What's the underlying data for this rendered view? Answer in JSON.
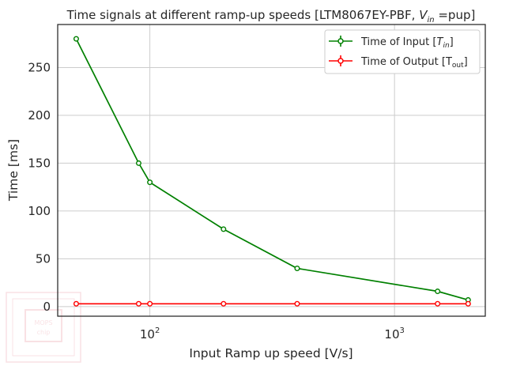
{
  "chart_data": {
    "type": "line",
    "title": "Time signals at different ramp-up speeds [LTM8067EY-PBF, V_in =pup]",
    "title_parts": {
      "prefix": "Time signals at different ramp-up speeds [LTM8067EY-PBF, ",
      "var": "V",
      "sub": "in",
      "suffix": " =pup]"
    },
    "xlabel": "Input Ramp up speed [V/s]",
    "ylabel": "Time [ms]",
    "xscale": "log",
    "xlim": [
      42,
      2350
    ],
    "ylim": [
      -10,
      295
    ],
    "xticks": [
      {
        "value": 100,
        "base": "10",
        "exp": "2"
      },
      {
        "value": 1000,
        "base": "10",
        "exp": "3"
      }
    ],
    "yticks": [
      0,
      50,
      100,
      150,
      200,
      250
    ],
    "grid": true,
    "legend_position": "top-right",
    "series": [
      {
        "name": "Time of Input [T_in]",
        "label_parts": {
          "prefix": "Time of Input [",
          "var": "T",
          "sub": "in",
          "suffix": "]"
        },
        "color": "#008000",
        "x": [
          50,
          90,
          100,
          200,
          400,
          1500,
          2000
        ],
        "y": [
          280,
          150,
          130,
          81,
          40,
          16,
          7
        ]
      },
      {
        "name": "Time of Output [T_out]",
        "label_parts": {
          "prefix": "Time of Output [T",
          "var": "",
          "sub": "out",
          "suffix": "]"
        },
        "color": "#ff0000",
        "x": [
          50,
          90,
          100,
          200,
          400,
          1500,
          2000
        ],
        "y": [
          3,
          3,
          3,
          3,
          3,
          3,
          3
        ]
      }
    ]
  },
  "watermark": {
    "text_line1": "MOPS",
    "text_line2": "chip"
  }
}
